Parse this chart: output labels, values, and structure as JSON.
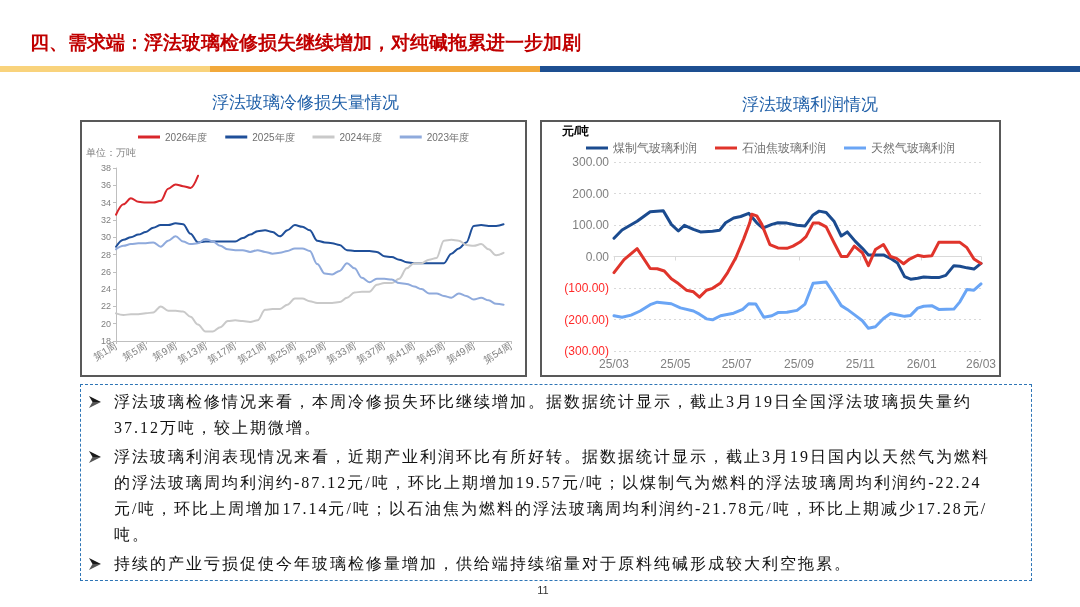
{
  "chart_data": [
    {
      "type": "other",
      "title": "四、需求端：浮法玻璃检修损失继续增加，对纯碱拖累进一步加剧",
      "annotations": [
        "11"
      ]
    },
    {
      "type": "line",
      "title": "浮法玻璃冷修损失量情况",
      "ylabel": "单位：万吨",
      "categories": [
        "第1周",
        null,
        null,
        null,
        "第5周",
        null,
        null,
        null,
        "第9周",
        null,
        null,
        null,
        "第13周",
        null,
        null,
        null,
        "第17周",
        null,
        null,
        null,
        "第21周",
        null,
        null,
        null,
        "第25周",
        null,
        null,
        null,
        "第29周",
        null,
        null,
        null,
        "第33周",
        null,
        null,
        null,
        "第37周",
        null,
        null,
        null,
        "第41周",
        null,
        null,
        null,
        "第45周",
        null,
        null,
        null,
        "第49周",
        null,
        null,
        null,
        null,
        "第54周"
      ],
      "series": [
        {
          "name": "2026年度",
          "color": "#d9262b",
          "values": [
            32.6,
            33.8,
            34.5,
            34.1,
            34.0,
            34.0,
            34.2,
            35.6,
            36.1,
            35.9,
            35.7,
            37.1,
            null,
            null,
            null,
            null,
            null,
            null,
            null,
            null,
            null,
            null,
            null,
            null,
            null,
            null,
            null,
            null,
            null,
            null,
            null,
            null,
            null,
            null,
            null,
            null,
            null,
            null,
            null,
            null,
            null,
            null,
            null,
            null,
            null,
            null,
            null,
            null,
            null,
            null,
            null,
            null,
            null,
            null
          ]
        },
        {
          "name": "2025年度",
          "color": "#1f4f99",
          "values": [
            28.9,
            29.7,
            30.0,
            30.3,
            30.6,
            31.1,
            31.4,
            31.4,
            31.6,
            31.5,
            30.4,
            29.4,
            29.5,
            29.5,
            29.5,
            29.5,
            29.5,
            29.9,
            30.3,
            30.7,
            30.8,
            30.6,
            30.1,
            30.8,
            31.4,
            31.2,
            30.8,
            29.6,
            29.4,
            29.3,
            29.1,
            28.5,
            28.4,
            28.4,
            28.4,
            28.3,
            27.8,
            27.7,
            27.4,
            27.1,
            27.0,
            27.0,
            27.0,
            27.0,
            27.0,
            28.1,
            28.7,
            29.4,
            31.3,
            31.4,
            31.3,
            31.3,
            31.5,
            null
          ]
        },
        {
          "name": "2024年度",
          "color": "#c9c9c9",
          "values": [
            21.2,
            21.0,
            21.1,
            21.1,
            21.2,
            21.3,
            22.0,
            21.5,
            21.5,
            21.4,
            20.8,
            19.9,
            19.1,
            19.1,
            19.6,
            20.3,
            20.4,
            20.3,
            20.2,
            20.4,
            21.6,
            21.7,
            21.7,
            22.2,
            22.9,
            22.9,
            22.6,
            22.4,
            22.4,
            22.4,
            22.5,
            23.0,
            23.6,
            23.7,
            23.7,
            24.5,
            24.7,
            24.7,
            25.2,
            26.4,
            27.0,
            27.0,
            27.4,
            27.6,
            29.6,
            29.7,
            29.6,
            29.1,
            29.0,
            29.2,
            28.6,
            27.9,
            28.2,
            null
          ]
        },
        {
          "name": "2023年度",
          "color": "#8faadc",
          "values": [
            28.6,
            29.0,
            29.2,
            29.3,
            29.3,
            29.4,
            28.9,
            29.6,
            30.1,
            29.5,
            29.2,
            29.3,
            29.8,
            29.5,
            29.0,
            28.6,
            28.5,
            28.5,
            28.3,
            28.5,
            28.3,
            28.1,
            28.2,
            28.4,
            28.7,
            28.7,
            28.4,
            26.9,
            25.8,
            25.7,
            26.1,
            27.0,
            26.4,
            25.3,
            24.8,
            25.2,
            25.2,
            25.1,
            24.7,
            24.6,
            24.3,
            24.0,
            23.5,
            23.5,
            23.2,
            23.0,
            23.5,
            23.2,
            22.8,
            23.0,
            22.7,
            22.3,
            22.2,
            null
          ]
        }
      ],
      "ylim": [
        18,
        38
      ],
      "yticks": [
        18,
        20,
        22,
        24,
        26,
        28,
        30,
        32,
        34,
        36,
        38
      ],
      "legend": "top"
    },
    {
      "type": "line",
      "title": "浮法玻璃利润情况",
      "ylabel": "元/吨",
      "series": [
        {
          "name": "煤制气玻璃利润",
          "color": "#1b4b8f",
          "x": [
            "2025-03-01",
            "2025-03-09",
            "2025-03-24",
            "2025-04-06",
            "2025-04-19",
            "2025-04-27",
            "2025-05-04",
            "2025-05-10",
            "2025-05-19",
            "2025-05-26",
            "2025-06-07",
            "2025-06-14",
            "2025-06-20",
            "2025-06-28",
            "2025-07-05",
            "2025-07-13",
            "2025-07-21",
            "2025-07-27",
            "2025-08-05",
            "2025-08-11",
            "2025-08-20",
            "2025-08-30",
            "2025-09-07",
            "2025-09-15",
            "2025-09-21",
            "2025-09-28",
            "2025-10-06",
            "2025-10-13",
            "2025-10-19",
            "2025-10-27",
            "2025-11-03",
            "2025-11-09",
            "2025-11-24",
            "2025-12-02",
            "2025-12-08",
            "2025-12-15",
            "2025-12-21",
            "2025-12-28",
            "2026-01-03",
            "2026-01-11",
            "2026-01-18",
            "2026-01-25",
            "2026-02-02",
            "2026-02-08",
            "2026-02-15",
            "2026-02-22",
            "2026-03-01"
          ],
          "values": [
            58,
            84,
            112,
            142,
            145,
            102,
            81,
            99,
            86,
            78,
            80,
            83,
            107,
            122,
            127,
            137,
            107,
            90,
            102,
            107,
            106,
            99,
            97,
            132,
            144,
            140,
            111,
            65,
            78,
            48,
            26,
            5,
            5,
            -8,
            -21,
            -64,
            -72,
            -69,
            -65,
            -67,
            -67,
            -60,
            -29,
            -31,
            -36,
            -40,
            -22
          ]
        },
        {
          "name": "石油焦玻璃利润",
          "color": "#e0342b",
          "x": [
            "2025-03-01",
            "2025-03-11",
            "2025-03-24",
            "2025-04-06",
            "2025-04-13",
            "2025-04-20",
            "2025-04-27",
            "2025-05-04",
            "2025-05-12",
            "2025-05-19",
            "2025-05-25",
            "2025-06-01",
            "2025-06-07",
            "2025-06-15",
            "2025-06-22",
            "2025-06-30",
            "2025-07-08",
            "2025-07-14",
            "2025-07-16",
            "2025-07-21",
            "2025-07-26",
            "2025-08-03",
            "2025-08-11",
            "2025-08-20",
            "2025-08-26",
            "2025-09-02",
            "2025-09-08",
            "2025-09-15",
            "2025-09-21",
            "2025-09-28",
            "2025-10-06",
            "2025-10-13",
            "2025-10-19",
            "2025-10-26",
            "2025-11-03",
            "2025-11-09",
            "2025-11-16",
            "2025-11-24",
            "2025-12-01",
            "2025-12-07",
            "2025-12-14",
            "2025-12-20",
            "2025-12-28",
            "2026-01-03",
            "2026-01-11",
            "2026-01-18",
            "2026-02-08",
            "2026-02-15",
            "2026-02-22",
            "2026-03-01"
          ],
          "values": [
            -51,
            -10,
            25,
            -38,
            -39,
            -46,
            -71,
            -86,
            -107,
            -112,
            -129,
            -107,
            -101,
            -84,
            -51,
            -5,
            56,
            107,
            134,
            129,
            102,
            38,
            27,
            26,
            33,
            46,
            63,
            106,
            106,
            94,
            43,
            0,
            0,
            33,
            12,
            -29,
            22,
            38,
            0,
            -6,
            -23,
            -8,
            4,
            0,
            2,
            45,
            45,
            28,
            -8,
            -22
          ]
        },
        {
          "name": "天然气玻璃利润",
          "color": "#6aa5f5",
          "x": [
            "2025-03-01",
            "2025-03-09",
            "2025-03-18",
            "2025-03-27",
            "2025-04-06",
            "2025-04-13",
            "2025-04-27",
            "2025-05-06",
            "2025-05-19",
            "2025-05-25",
            "2025-06-01",
            "2025-06-07",
            "2025-06-15",
            "2025-06-28",
            "2025-07-07",
            "2025-07-13",
            "2025-07-20",
            "2025-07-28",
            "2025-08-05",
            "2025-08-11",
            "2025-08-20",
            "2025-08-30",
            "2025-09-07",
            "2025-09-15",
            "2025-09-28",
            "2025-10-06",
            "2025-10-13",
            "2025-10-19",
            "2025-10-27",
            "2025-11-03",
            "2025-11-09",
            "2025-11-16",
            "2025-11-24",
            "2025-12-01",
            "2025-12-07",
            "2025-12-15",
            "2025-12-21",
            "2025-12-28",
            "2026-01-03",
            "2026-01-11",
            "2026-01-18",
            "2026-02-02",
            "2026-02-08",
            "2026-02-15",
            "2026-02-22",
            "2026-03-01"
          ],
          "values": [
            -188,
            -193,
            -186,
            -173,
            -153,
            -145,
            -150,
            -163,
            -173,
            -183,
            -198,
            -201,
            -188,
            -180,
            -168,
            -150,
            -151,
            -193,
            -188,
            -178,
            -177,
            -171,
            -151,
            -85,
            -81,
            -120,
            -156,
            -168,
            -187,
            -204,
            -228,
            -223,
            -197,
            -181,
            -185,
            -190,
            -187,
            -164,
            -158,
            -156,
            -168,
            -167,
            -144,
            -105,
            -107,
            -87
          ]
        }
      ],
      "xlim": [
        "2025-03-01",
        "2026-03-01"
      ],
      "xticks": [
        {
          "value": "2025-03-01",
          "label": "25/03"
        },
        {
          "value": "2025-05-01",
          "label": "25/05"
        },
        {
          "value": "2025-07-01",
          "label": "25/07"
        },
        {
          "value": "2025-09-01",
          "label": "25/09"
        },
        {
          "value": "2025-11-01",
          "label": "25/11"
        },
        {
          "value": "2026-01-01",
          "label": "26/01"
        },
        {
          "value": "2026-03-01",
          "label": "26/03"
        }
      ],
      "ylim": [
        -300,
        300
      ],
      "yticks": [
        {
          "value": -300,
          "label": "(300.00)"
        },
        {
          "value": -200,
          "label": "(200.00)"
        },
        {
          "value": -100,
          "label": "(100.00)"
        },
        {
          "value": 0,
          "label": "0.00"
        },
        {
          "value": 100,
          "label": "100.00"
        },
        {
          "value": 200,
          "label": "200.00"
        },
        {
          "value": 300,
          "label": "300.00"
        }
      ],
      "grid": "y",
      "legend": "top"
    },
    {
      "type": "other",
      "annotations": [
        "浮法玻璃检修情况来看，本周冷修损失环比继续增加。据数据统计显示，截止3月19日全国浮法玻璃损失量约37.12万吨，较上期微增。",
        "浮法玻璃利润表现情况来看，近期产业利润环比有所好转。据数据统计显示，截止3月19日国内以天然气为燃料的浮法玻璃周均利润约-87.12元/吨，环比上期增加19.57元/吨；以煤制气为燃料的浮法玻璃周均利润约-22.24元/吨，环比上周增加17.14元/吨；以石油焦为燃料的浮法玻璃周均利润约-21.78元/吨，环比上期减少17.28元/吨。",
        "持续的产业亏损促使今年玻璃检修量增加，供给端持续缩量对于原料纯碱形成较大利空拖累。"
      ]
    }
  ]
}
